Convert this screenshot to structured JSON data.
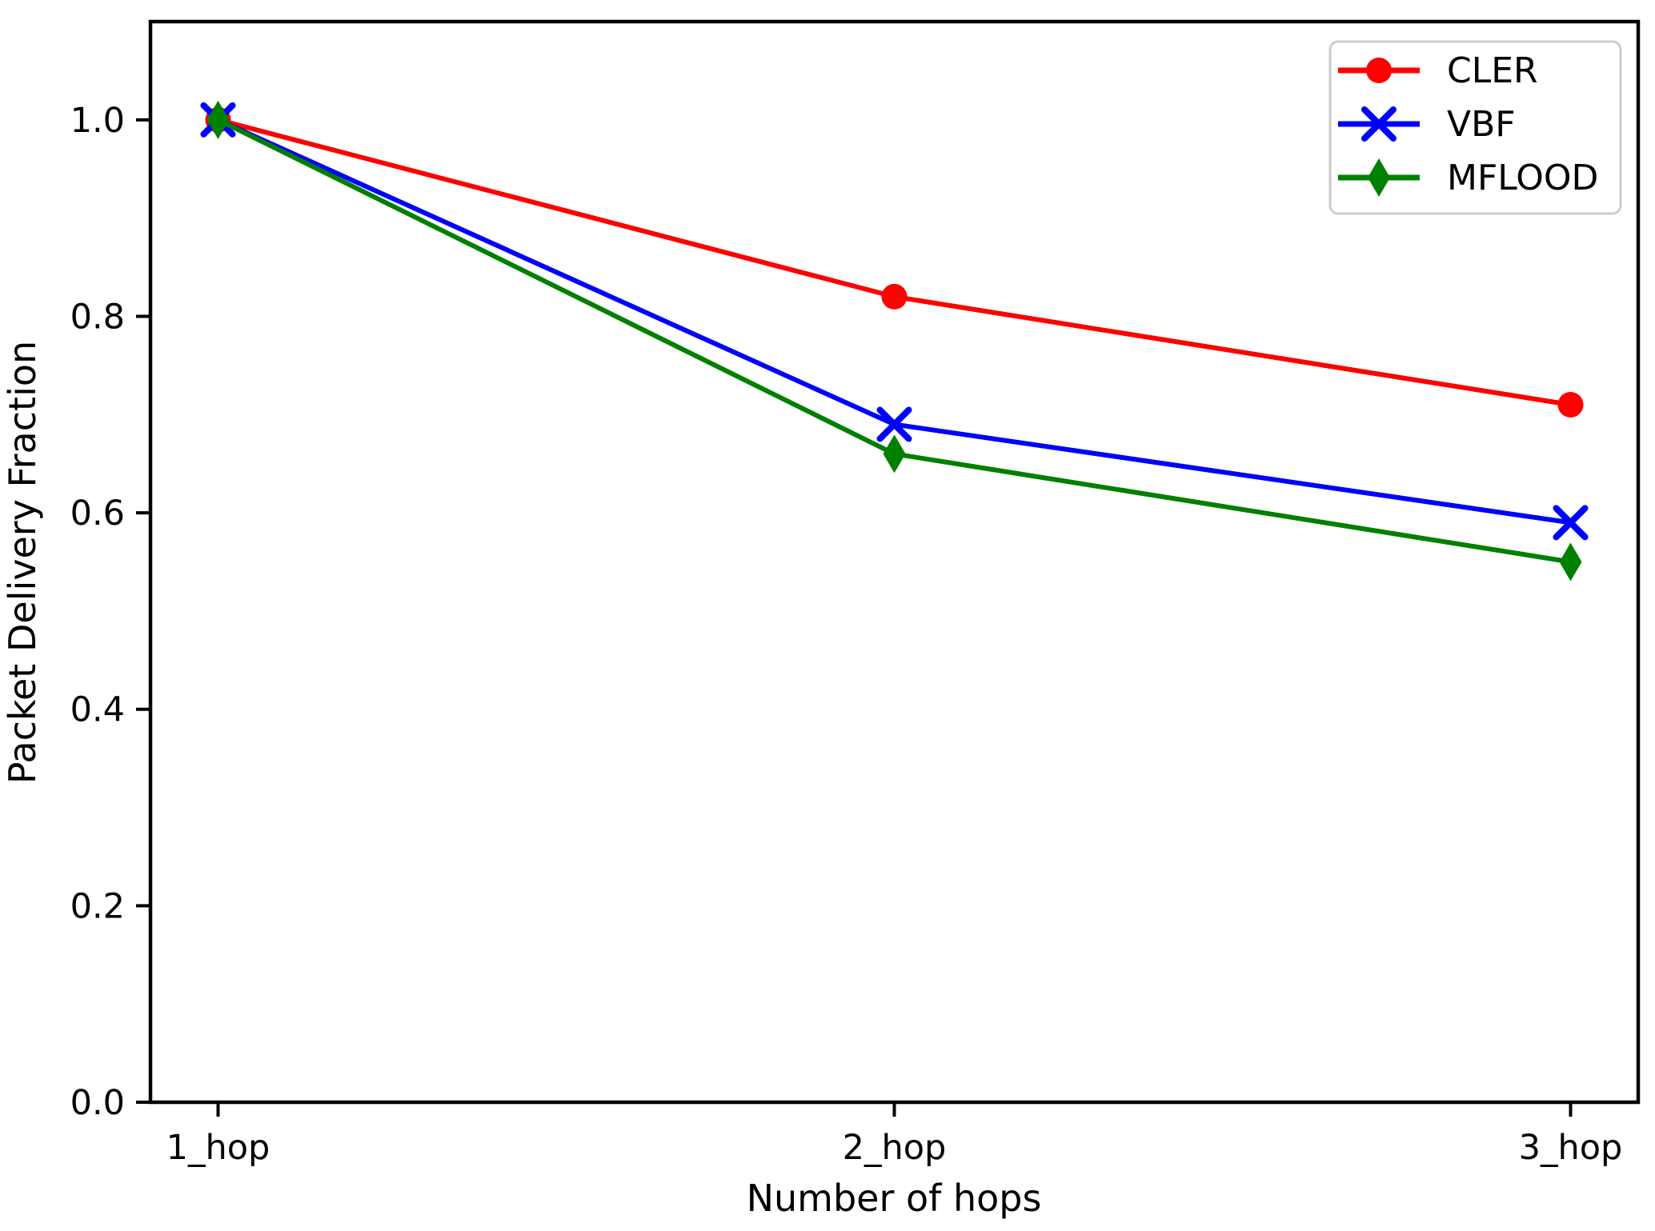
{
  "chart_data": {
    "type": "line",
    "title": "",
    "xlabel": "Number of hops",
    "ylabel": "Packet Delivery Fraction",
    "categories": [
      "1_hop",
      "2_hop",
      "3_hop"
    ],
    "y_tick_labels": [
      "0.0",
      "0.2",
      "0.4",
      "0.6",
      "0.8",
      "1.0"
    ],
    "y_tick_values": [
      0.0,
      0.2,
      0.4,
      0.6,
      0.8,
      1.0
    ],
    "ylim": [
      0.0,
      1.1
    ],
    "grid": false,
    "background_color": "#ffffff",
    "axis_color": "#000000",
    "legend": {
      "position": "upper right",
      "border_color": "#cccccc",
      "entries": [
        "CLER",
        "VBF",
        "MFLOOD"
      ]
    },
    "series": [
      {
        "name": "CLER",
        "color": "#ff0000",
        "marker": "circle",
        "values": [
          1.0,
          0.82,
          0.71
        ]
      },
      {
        "name": "VBF",
        "color": "#0000ff",
        "marker": "x",
        "values": [
          1.0,
          0.69,
          0.59
        ]
      },
      {
        "name": "MFLOOD",
        "color": "#008000",
        "marker": "thin-diamond",
        "values": [
          1.0,
          0.66,
          0.55
        ]
      }
    ]
  }
}
